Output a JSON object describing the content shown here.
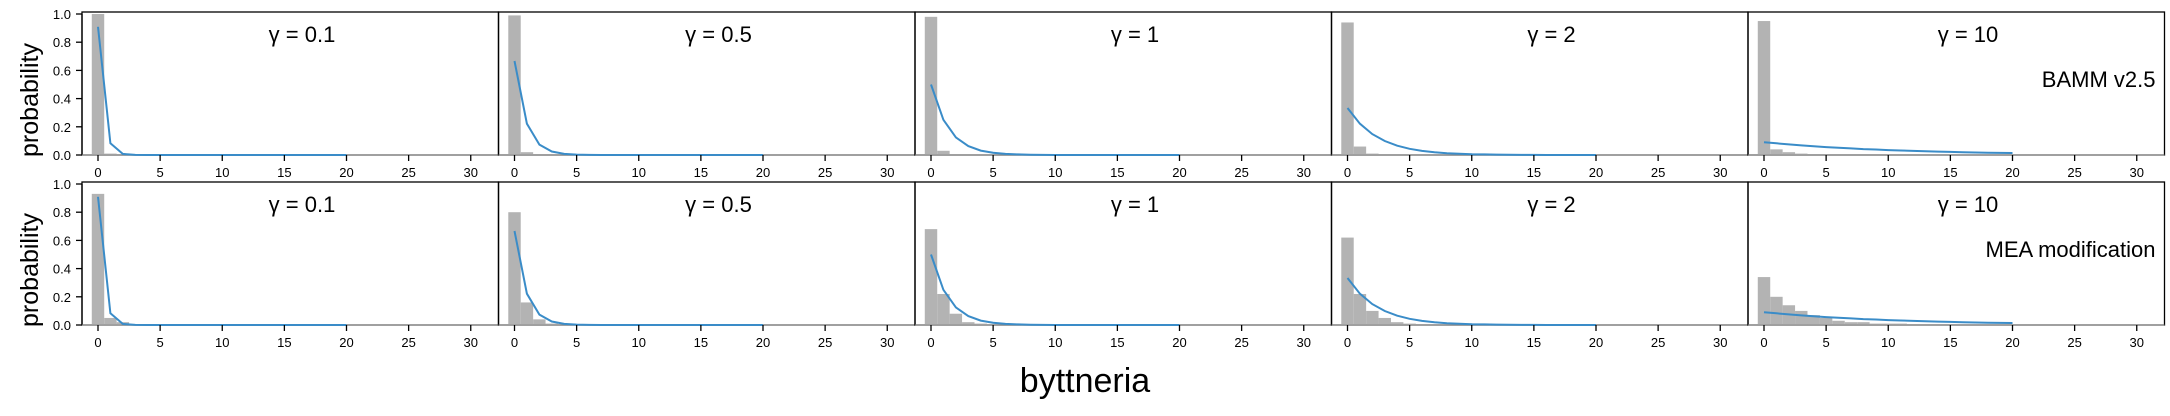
{
  "figure": {
    "xlabel": "byttneria",
    "ylabel": "probability"
  },
  "chart_data": {
    "type": "bar",
    "panels_note": "",
    "rows": [
      {
        "label": "BAMM v2.5"
      },
      {
        "label": "MEA modification"
      }
    ],
    "columns": [
      {
        "title": "γ = 0.1"
      },
      {
        "title": "γ = 0.5"
      },
      {
        "title": "γ = 1"
      },
      {
        "title": "γ = 2"
      },
      {
        "title": "γ = 10"
      }
    ],
    "xlim": [
      -1,
      31
    ],
    "ylim": [
      0,
      1.0
    ],
    "x_ticks": [
      0,
      5,
      10,
      15,
      20,
      25,
      30
    ],
    "y_ticks": [
      0.0,
      0.2,
      0.4,
      0.6,
      0.8,
      1.0
    ],
    "y_tick_labels": [
      "0.0",
      "0.2",
      "0.4",
      "0.6",
      "0.8",
      "1.0"
    ],
    "colors": {
      "bars": "#b3b3b3",
      "line": "#3a8cc8"
    },
    "prior_curves": [
      [
        0.909,
        0.083,
        0.008,
        0.001,
        0.0,
        0.0,
        0.0,
        0.0,
        0.0,
        0.0,
        0.0,
        0.0,
        0.0,
        0.0,
        0.0,
        0.0,
        0.0,
        0.0,
        0.0,
        0.0,
        0.0
      ],
      [
        0.667,
        0.222,
        0.074,
        0.025,
        0.008,
        0.003,
        0.001,
        0.0,
        0.0,
        0.0,
        0.0,
        0.0,
        0.0,
        0.0,
        0.0,
        0.0,
        0.0,
        0.0,
        0.0,
        0.0,
        0.0
      ],
      [
        0.5,
        0.25,
        0.125,
        0.063,
        0.031,
        0.016,
        0.008,
        0.004,
        0.002,
        0.001,
        0.0,
        0.0,
        0.0,
        0.0,
        0.0,
        0.0,
        0.0,
        0.0,
        0.0,
        0.0,
        0.0
      ],
      [
        0.333,
        0.222,
        0.148,
        0.099,
        0.066,
        0.044,
        0.029,
        0.02,
        0.013,
        0.009,
        0.006,
        0.004,
        0.003,
        0.002,
        0.001,
        0.001,
        0.0,
        0.0,
        0.0,
        0.0,
        0.0
      ],
      [
        0.091,
        0.083,
        0.075,
        0.068,
        0.062,
        0.056,
        0.051,
        0.047,
        0.042,
        0.039,
        0.035,
        0.032,
        0.029,
        0.026,
        0.024,
        0.022,
        0.02,
        0.018,
        0.016,
        0.015,
        0.014
      ]
    ],
    "posterior_bars": [
      [
        [
          1.0,
          0.01
        ],
        [
          0.99,
          0.02
        ],
        [
          0.98,
          0.03
        ],
        [
          0.94,
          0.06,
          0.01
        ],
        [
          0.95,
          0.04,
          0.02,
          0.01
        ]
      ],
      [
        [
          0.93,
          0.05,
          0.02
        ],
        [
          0.8,
          0.16,
          0.04,
          0.01
        ],
        [
          0.68,
          0.22,
          0.08,
          0.02,
          0.01
        ],
        [
          0.62,
          0.22,
          0.1,
          0.05,
          0.02,
          0.01
        ],
        [
          0.34,
          0.2,
          0.14,
          0.1,
          0.07,
          0.05,
          0.03,
          0.02,
          0.02,
          0.01,
          0.01,
          0.01
        ]
      ]
    ]
  }
}
